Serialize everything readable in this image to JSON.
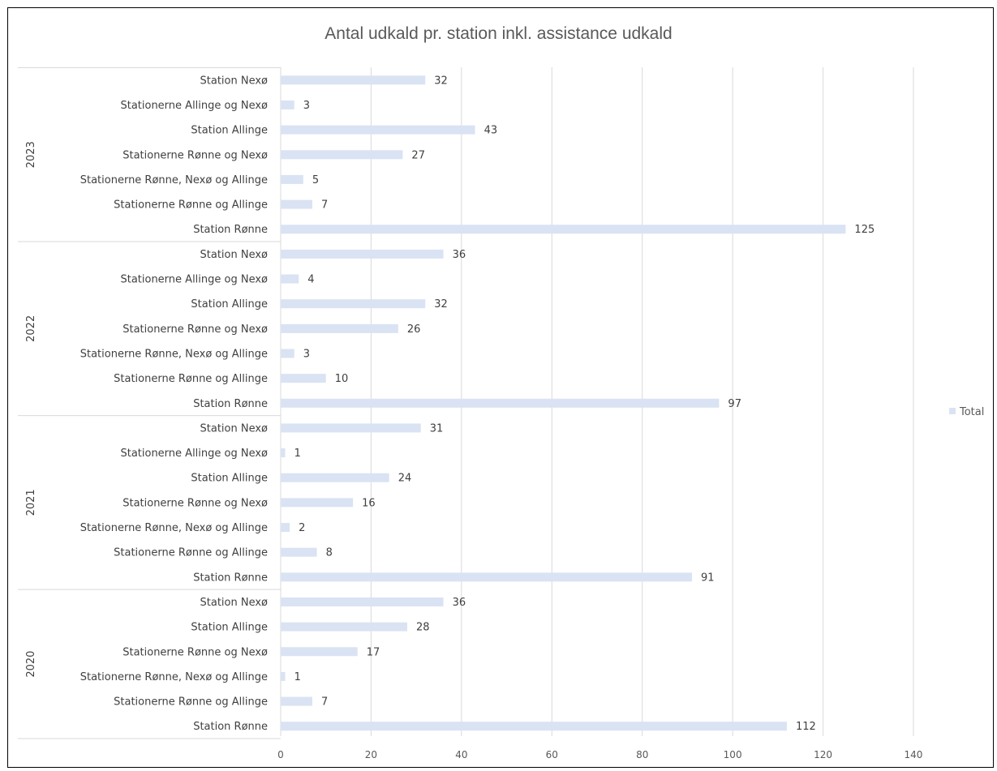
{
  "chart_data": {
    "type": "bar",
    "orientation": "horizontal",
    "title": "Antal udkald pr. station inkl. assistance udkald",
    "xlim": [
      0,
      140
    ],
    "xticks": [
      0,
      20,
      40,
      60,
      80,
      100,
      120,
      140
    ],
    "grid": true,
    "legend": "right",
    "series_name": "Total",
    "colors": {
      "bar": "#dae3f3",
      "grid": "#d9d9d9",
      "text": "#404040"
    },
    "groups": [
      {
        "year": "2023",
        "items": [
          {
            "label": "Station Nexø",
            "value": 32
          },
          {
            "label": "Stationerne Allinge og Nexø",
            "value": 3
          },
          {
            "label": "Station Allinge",
            "value": 43
          },
          {
            "label": "Stationerne Rønne og Nexø",
            "value": 27
          },
          {
            "label": "Stationerne Rønne, Nexø og Allinge",
            "value": 5
          },
          {
            "label": "Stationerne Rønne og Allinge",
            "value": 7
          },
          {
            "label": "Station Rønne",
            "value": 125
          }
        ]
      },
      {
        "year": "2022",
        "items": [
          {
            "label": "Station Nexø",
            "value": 36
          },
          {
            "label": "Stationerne Allinge og Nexø",
            "value": 4
          },
          {
            "label": "Station Allinge",
            "value": 32
          },
          {
            "label": "Stationerne Rønne og Nexø",
            "value": 26
          },
          {
            "label": "Stationerne Rønne, Nexø og Allinge",
            "value": 3
          },
          {
            "label": "Stationerne Rønne og Allinge",
            "value": 10
          },
          {
            "label": "Station Rønne",
            "value": 97
          }
        ]
      },
      {
        "year": "2021",
        "items": [
          {
            "label": "Station Nexø",
            "value": 31
          },
          {
            "label": "Stationerne Allinge og Nexø",
            "value": 1
          },
          {
            "label": "Station Allinge",
            "value": 24
          },
          {
            "label": "Stationerne Rønne og Nexø",
            "value": 16
          },
          {
            "label": "Stationerne Rønne, Nexø og Allinge",
            "value": 2
          },
          {
            "label": "Stationerne Rønne og Allinge",
            "value": 8
          },
          {
            "label": "Station Rønne",
            "value": 91
          }
        ]
      },
      {
        "year": "2020",
        "items": [
          {
            "label": "Station Nexø",
            "value": 36
          },
          {
            "label": "Station Allinge",
            "value": 28
          },
          {
            "label": "Stationerne Rønne og Nexø",
            "value": 17
          },
          {
            "label": "Stationerne Rønne, Nexø og Allinge",
            "value": 1
          },
          {
            "label": "Stationerne Rønne og Allinge",
            "value": 7
          },
          {
            "label": "Station Rønne",
            "value": 112
          }
        ]
      }
    ]
  }
}
